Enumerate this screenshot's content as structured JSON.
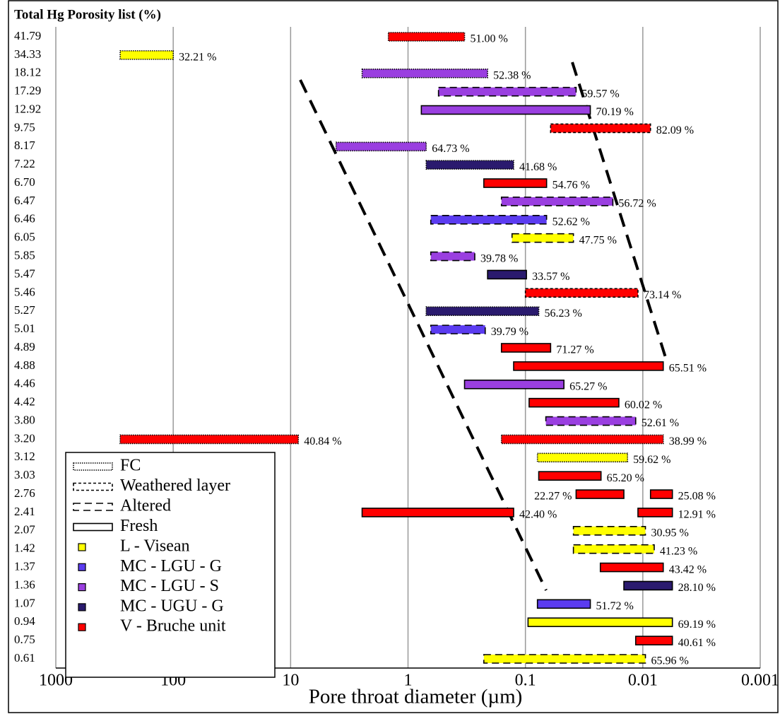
{
  "chart_data": {
    "type": "range-bar",
    "title": "Total Hg Porosity list (%)",
    "x_label": "Pore throat diameter (µm)",
    "xscale": "log",
    "xlim": [
      1000,
      0.001
    ],
    "xticks": [
      1000,
      100,
      10,
      1,
      0.1,
      0.01,
      0.001
    ],
    "grid": true,
    "legend_position": "lower left",
    "states": [
      {
        "name": "FC",
        "style": "dotted"
      },
      {
        "name": "Weathered layer",
        "style": "short-dash"
      },
      {
        "name": "Altered",
        "style": "long-dash"
      },
      {
        "name": "Fresh",
        "style": "solid"
      }
    ],
    "units": [
      {
        "name": "L - Visean",
        "color": "#ffff00"
      },
      {
        "name": "MC - LGU - G",
        "color": "#5b3cf0"
      },
      {
        "name": "MC - LGU - S",
        "color": "#9a3fe0"
      },
      {
        "name": "MC - UGU - G",
        "color": "#2a1a6e"
      },
      {
        "name": "V - Bruche unit",
        "color": "#ff0000"
      }
    ],
    "rows": [
      {
        "label": "41.79",
        "bars": [
          {
            "from": 1.47,
            "to": 0.33,
            "style": "dotted",
            "color": "#ff0000",
            "text": "51.00 %"
          }
        ]
      },
      {
        "label": "34.33",
        "bars": [
          {
            "from": 283,
            "to": 100,
            "style": "dotted",
            "color": "#ffff00",
            "text": "32.21 %"
          }
        ]
      },
      {
        "label": "18.12",
        "bars": [
          {
            "from": 2.46,
            "to": 0.21,
            "style": "dotted",
            "color": "#9a3fe0",
            "text": "52.38 %"
          }
        ]
      },
      {
        "label": "17.29",
        "bars": [
          {
            "from": 0.55,
            "to": 0.037,
            "style": "long-dash",
            "color": "#9a3fe0",
            "text": "59.57 %"
          }
        ]
      },
      {
        "label": "12.92",
        "bars": [
          {
            "from": 0.77,
            "to": 0.028,
            "style": "solid",
            "color": "#9a3fe0",
            "text": "70.19 %"
          }
        ]
      },
      {
        "label": "9.75",
        "bars": [
          {
            "from": 0.061,
            "to": 0.0086,
            "style": "short-dash",
            "color": "#ff0000",
            "text": "82.09 %"
          }
        ]
      },
      {
        "label": "8.17",
        "bars": [
          {
            "from": 4.1,
            "to": 0.7,
            "style": "dotted",
            "color": "#9a3fe0",
            "text": "64.73 %"
          }
        ]
      },
      {
        "label": "7.22",
        "bars": [
          {
            "from": 0.7,
            "to": 0.126,
            "style": "dotted",
            "color": "#2a1a6e",
            "text": "41.68 %"
          }
        ]
      },
      {
        "label": "6.70",
        "bars": [
          {
            "from": 0.226,
            "to": 0.066,
            "style": "solid",
            "color": "#ff0000",
            "text": "54.76 %"
          }
        ]
      },
      {
        "label": "6.47",
        "bars": [
          {
            "from": 0.16,
            "to": 0.018,
            "style": "long-dash",
            "color": "#9a3fe0",
            "text": "56.72 %"
          }
        ]
      },
      {
        "label": "6.46",
        "bars": [
          {
            "from": 0.64,
            "to": 0.066,
            "style": "long-dash",
            "color": "#5b3cf0",
            "text": "52.62 %"
          }
        ]
      },
      {
        "label": "6.05",
        "bars": [
          {
            "from": 0.13,
            "to": 0.039,
            "style": "long-dash",
            "color": "#ffff00",
            "text": "47.75 %"
          }
        ]
      },
      {
        "label": "5.85",
        "bars": [
          {
            "from": 0.64,
            "to": 0.27,
            "style": "long-dash",
            "color": "#9a3fe0",
            "text": "39.78 %"
          }
        ]
      },
      {
        "label": "5.47",
        "bars": [
          {
            "from": 0.21,
            "to": 0.098,
            "style": "solid",
            "color": "#2a1a6e",
            "text": "33.57 %"
          }
        ]
      },
      {
        "label": "5.46",
        "bars": [
          {
            "from": 0.1,
            "to": 0.011,
            "style": "short-dash",
            "color": "#ff0000",
            "text": "73.14 %"
          }
        ]
      },
      {
        "label": "5.27",
        "bars": [
          {
            "from": 0.7,
            "to": 0.077,
            "style": "dotted",
            "color": "#2a1a6e",
            "text": "56.23 %"
          }
        ]
      },
      {
        "label": "5.01",
        "bars": [
          {
            "from": 0.64,
            "to": 0.22,
            "style": "long-dash",
            "color": "#5b3cf0",
            "text": "39.79 %"
          }
        ]
      },
      {
        "label": "4.89",
        "bars": [
          {
            "from": 0.16,
            "to": 0.061,
            "style": "solid",
            "color": "#ff0000",
            "text": "71.27 %"
          }
        ]
      },
      {
        "label": "4.88",
        "bars": [
          {
            "from": 0.126,
            "to": 0.0067,
            "style": "solid",
            "color": "#ff0000",
            "text": "65.51 %"
          }
        ]
      },
      {
        "label": "4.46",
        "bars": [
          {
            "from": 0.33,
            "to": 0.047,
            "style": "solid",
            "color": "#9a3fe0",
            "text": "65.27 %"
          }
        ]
      },
      {
        "label": "4.42",
        "bars": [
          {
            "from": 0.093,
            "to": 0.016,
            "style": "solid",
            "color": "#ff0000",
            "text": "60.02 %"
          }
        ]
      },
      {
        "label": "3.80",
        "bars": [
          {
            "from": 0.067,
            "to": 0.0115,
            "style": "long-dash",
            "color": "#9a3fe0",
            "text": "52.61 %"
          }
        ]
      },
      {
        "label": "3.20",
        "bars": [
          {
            "from": 283,
            "to": 8.6,
            "style": "dotted",
            "color": "#ff0000",
            "text": "40.84 %"
          },
          {
            "from": 0.16,
            "to": 0.0067,
            "style": "dotted",
            "color": "#ff0000",
            "text": "38.99 %"
          }
        ]
      },
      {
        "label": "3.12",
        "bars": [
          {
            "from": 0.079,
            "to": 0.0135,
            "style": "dotted",
            "color": "#ffff00",
            "text": "59.62 %"
          }
        ]
      },
      {
        "label": "3.03",
        "bars": [
          {
            "from": 0.077,
            "to": 0.0227,
            "style": "solid",
            "color": "#ff0000",
            "text": "65.20 %"
          }
        ]
      },
      {
        "label": "2.76",
        "bars": [
          {
            "from": 0.037,
            "to": 0.0145,
            "style": "solid",
            "color": "#ff0000",
            "text": "22.27 %"
          },
          {
            "from": 0.0086,
            "to": 0.0056,
            "style": "solid",
            "color": "#ff0000",
            "text": "25.08 %"
          }
        ]
      },
      {
        "label": "2.41",
        "bars": [
          {
            "from": 2.46,
            "to": 0.126,
            "style": "solid",
            "color": "#ff0000",
            "text": "42.40 %"
          },
          {
            "from": 0.011,
            "to": 0.0056,
            "style": "solid",
            "color": "#ff0000",
            "text": "12.91 %"
          }
        ]
      },
      {
        "label": "2.07",
        "bars": [
          {
            "from": 0.039,
            "to": 0.0095,
            "style": "long-dash",
            "color": "#ffff00",
            "text": "30.95 %"
          }
        ]
      },
      {
        "label": "1.42",
        "bars": [
          {
            "from": 0.039,
            "to": 0.008,
            "style": "long-dash",
            "color": "#ffff00",
            "text": "41.23 %"
          }
        ]
      },
      {
        "label": "1.37",
        "bars": [
          {
            "from": 0.023,
            "to": 0.0067,
            "style": "solid",
            "color": "#ff0000",
            "text": "43.42 %"
          }
        ]
      },
      {
        "label": "1.36",
        "bars": [
          {
            "from": 0.0145,
            "to": 0.0056,
            "style": "solid",
            "color": "#2a1a6e",
            "text": "28.10 %"
          }
        ]
      },
      {
        "label": "1.07",
        "bars": [
          {
            "from": 0.079,
            "to": 0.028,
            "style": "solid",
            "color": "#5b3cf0",
            "text": "51.72 %"
          }
        ]
      },
      {
        "label": "0.94",
        "bars": [
          {
            "from": 0.095,
            "to": 0.0056,
            "style": "solid",
            "color": "#ffff00",
            "text": "69.19 %"
          }
        ]
      },
      {
        "label": "0.75",
        "bars": [
          {
            "from": 0.0115,
            "to": 0.0056,
            "style": "solid",
            "color": "#ff0000",
            "text": "40.61 %"
          }
        ]
      },
      {
        "label": "0.61",
        "bars": [
          {
            "from": 0.226,
            "to": 0.0095,
            "style": "long-dash",
            "color": "#ffff00",
            "text": "65.96 %"
          }
        ]
      }
    ]
  }
}
